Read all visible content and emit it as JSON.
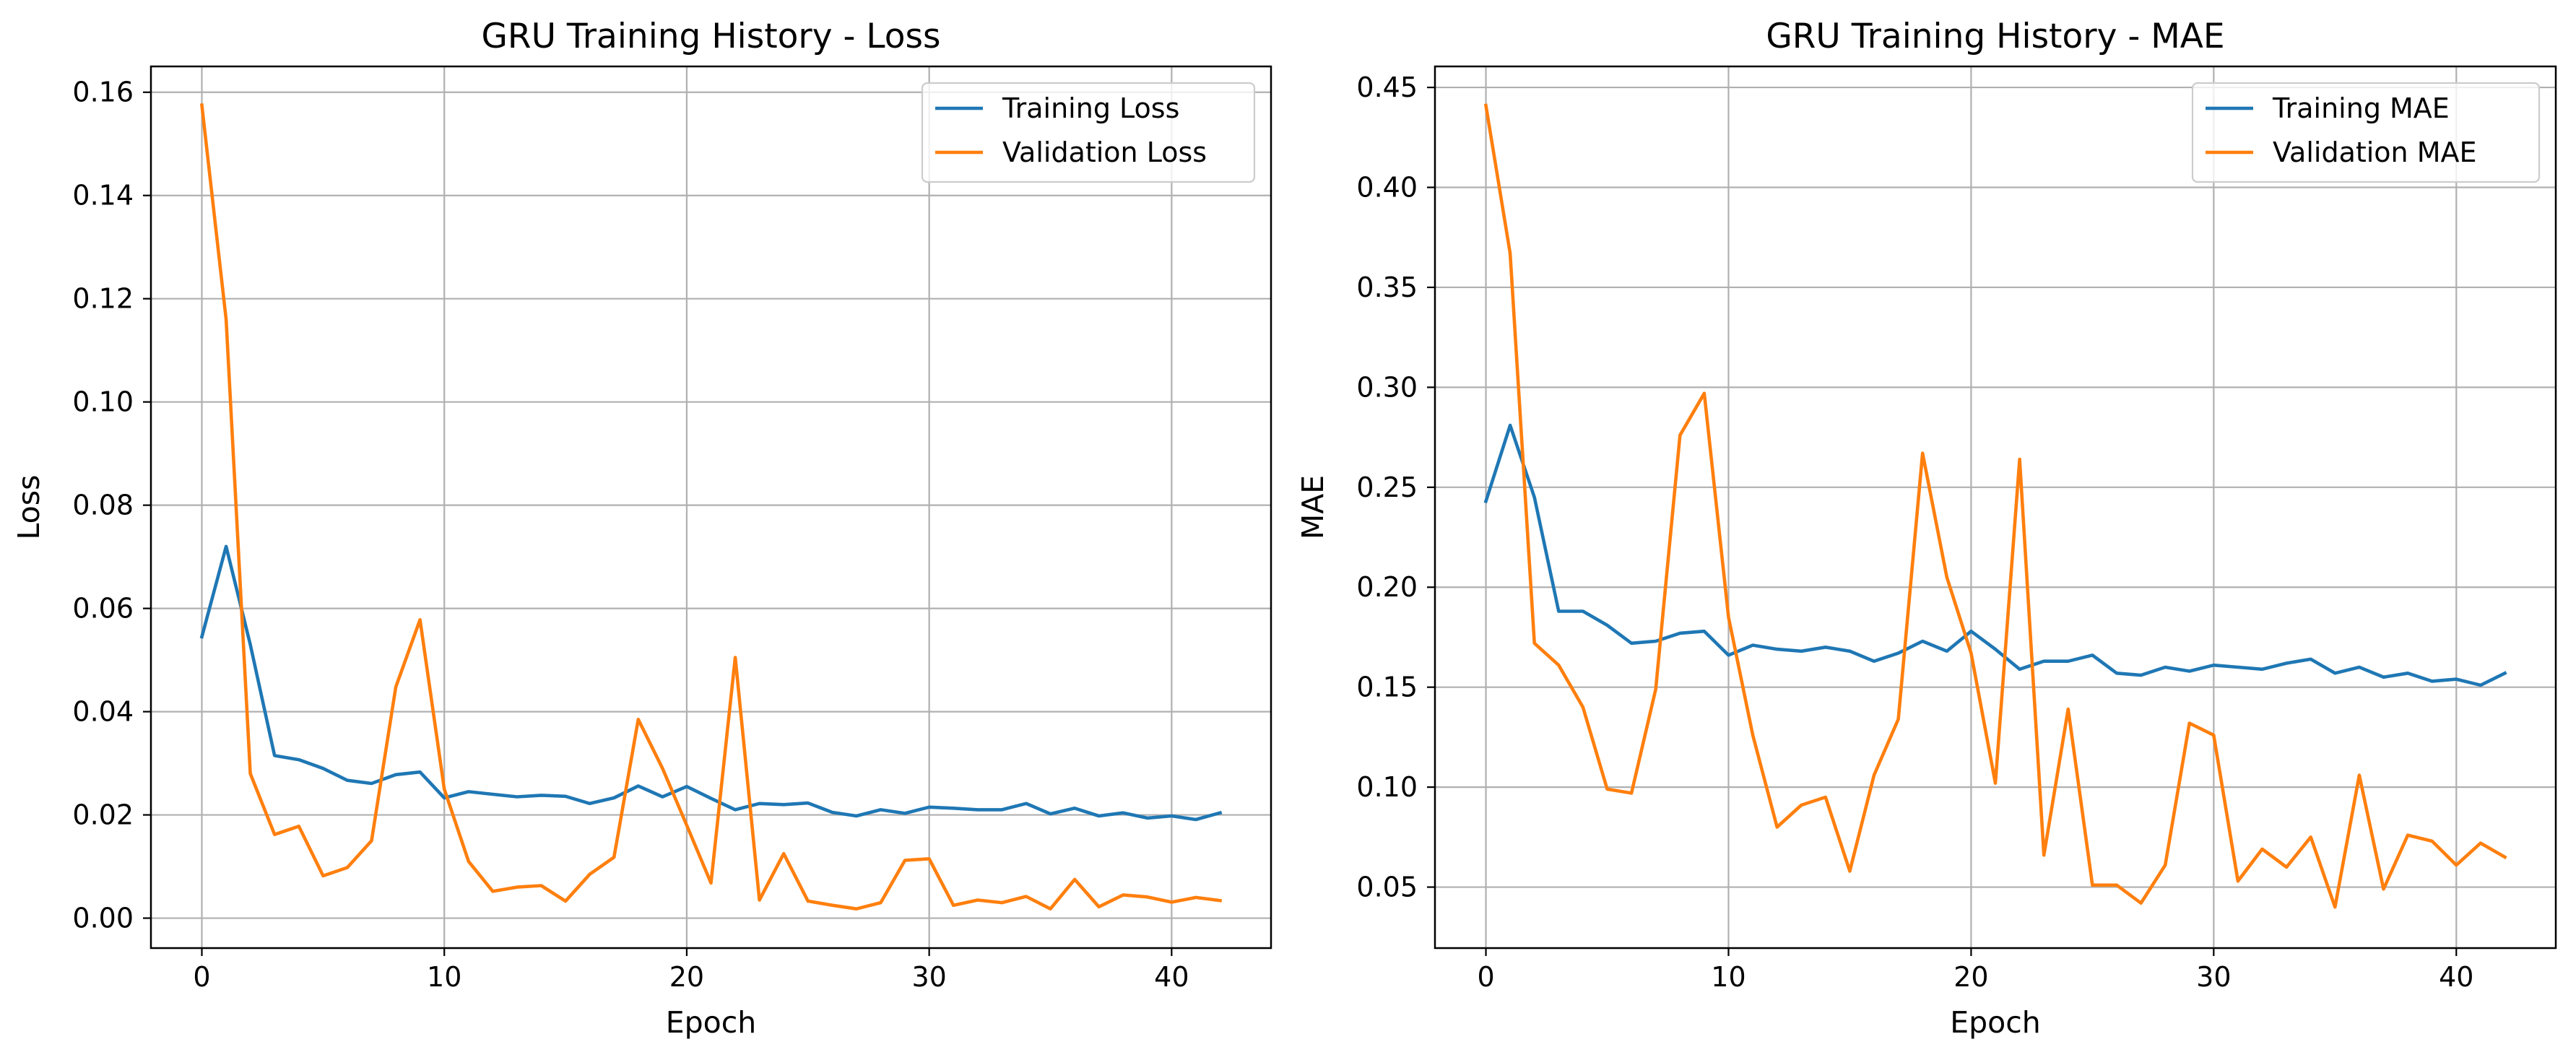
{
  "colors": {
    "training": "#1f77b4",
    "validation": "#ff7f0e",
    "grid": "#b0b0b0",
    "frame": "#000000"
  },
  "chart_data": [
    {
      "type": "line",
      "title": "GRU Training History - Loss",
      "xlabel": "Epoch",
      "ylabel": "Loss",
      "xlim": [
        -2.1,
        44.1
      ],
      "ylim": [
        -0.0058,
        0.165
      ],
      "xticks": [
        0,
        10,
        20,
        30,
        40
      ],
      "xtick_labels": [
        "0",
        "10",
        "20",
        "30",
        "40"
      ],
      "yticks": [
        0.0,
        0.02,
        0.04,
        0.06,
        0.08,
        0.1,
        0.12,
        0.14,
        0.16
      ],
      "ytick_labels": [
        "0.00",
        "0.02",
        "0.04",
        "0.06",
        "0.08",
        "0.10",
        "0.12",
        "0.14",
        "0.16"
      ],
      "grid": true,
      "legend_position": "upper right",
      "series": [
        {
          "name": "Training Loss",
          "color": "#1f77b4",
          "values": [
            0.0545,
            0.072,
            0.053,
            0.0315,
            0.0307,
            0.029,
            0.0267,
            0.0261,
            0.0278,
            0.0283,
            0.0233,
            0.0245,
            0.024,
            0.0235,
            0.0238,
            0.0236,
            0.0222,
            0.0233,
            0.0256,
            0.0235,
            0.0255,
            0.0232,
            0.021,
            0.0222,
            0.022,
            0.0223,
            0.0205,
            0.0198,
            0.021,
            0.0203,
            0.0215,
            0.0213,
            0.021,
            0.021,
            0.0222,
            0.0202,
            0.0213,
            0.0198,
            0.0204,
            0.0194,
            0.0198,
            0.0191,
            0.0204
          ]
        },
        {
          "name": "Validation Loss",
          "color": "#ff7f0e",
          "values": [
            0.1575,
            0.116,
            0.028,
            0.0162,
            0.0178,
            0.0082,
            0.0098,
            0.015,
            0.0448,
            0.0578,
            0.025,
            0.011,
            0.0052,
            0.006,
            0.0063,
            0.0033,
            0.0085,
            0.0118,
            0.0385,
            0.029,
            0.018,
            0.0068,
            0.0505,
            0.0035,
            0.0125,
            0.0033,
            0.0025,
            0.0018,
            0.003,
            0.0112,
            0.0115,
            0.0025,
            0.0035,
            0.003,
            0.0042,
            0.0018,
            0.0075,
            0.0022,
            0.0045,
            0.0041,
            0.0031,
            0.004,
            0.0034
          ]
        }
      ]
    },
    {
      "type": "line",
      "title": "GRU Training History - MAE",
      "xlabel": "Epoch",
      "ylabel": "MAE",
      "xlim": [
        -2.1,
        44.1
      ],
      "ylim": [
        0.0195,
        0.4605
      ],
      "xticks": [
        0,
        10,
        20,
        30,
        40
      ],
      "xtick_labels": [
        "0",
        "10",
        "20",
        "30",
        "40"
      ],
      "yticks": [
        0.05,
        0.1,
        0.15,
        0.2,
        0.25,
        0.3,
        0.35,
        0.4,
        0.45
      ],
      "ytick_labels": [
        "0.05",
        "0.10",
        "0.15",
        "0.20",
        "0.25",
        "0.30",
        "0.35",
        "0.40",
        "0.45"
      ],
      "grid": true,
      "legend_position": "upper right",
      "series": [
        {
          "name": "Training MAE",
          "color": "#1f77b4",
          "values": [
            0.243,
            0.281,
            0.245,
            0.188,
            0.188,
            0.181,
            0.172,
            0.173,
            0.177,
            0.178,
            0.166,
            0.171,
            0.169,
            0.168,
            0.17,
            0.168,
            0.163,
            0.167,
            0.173,
            0.168,
            0.178,
            0.169,
            0.159,
            0.163,
            0.163,
            0.166,
            0.157,
            0.156,
            0.16,
            0.158,
            0.161,
            0.16,
            0.159,
            0.162,
            0.164,
            0.157,
            0.16,
            0.155,
            0.157,
            0.153,
            0.154,
            0.151,
            0.157
          ]
        },
        {
          "name": "Validation MAE",
          "color": "#ff7f0e",
          "values": [
            0.441,
            0.367,
            0.172,
            0.161,
            0.14,
            0.099,
            0.097,
            0.149,
            0.276,
            0.297,
            0.185,
            0.126,
            0.08,
            0.091,
            0.095,
            0.058,
            0.106,
            0.134,
            0.267,
            0.205,
            0.167,
            0.102,
            0.264,
            0.066,
            0.139,
            0.051,
            0.051,
            0.042,
            0.061,
            0.132,
            0.126,
            0.053,
            0.069,
            0.06,
            0.075,
            0.04,
            0.106,
            0.049,
            0.076,
            0.073,
            0.061,
            0.072,
            0.065
          ]
        }
      ]
    }
  ]
}
